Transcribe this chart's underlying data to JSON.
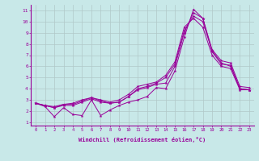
{
  "xlabel": "Windchill (Refroidissement éolien,°C)",
  "background_color": "#c8e8e8",
  "line_color": "#990099",
  "grid_color": "#b0c8c8",
  "xlim": [
    -0.5,
    23.5
  ],
  "ylim": [
    0.7,
    11.5
  ],
  "xticks": [
    0,
    1,
    2,
    3,
    4,
    5,
    6,
    7,
    8,
    9,
    10,
    11,
    12,
    13,
    14,
    15,
    16,
    17,
    18,
    19,
    20,
    21,
    22,
    23
  ],
  "yticks": [
    1,
    2,
    3,
    4,
    5,
    6,
    7,
    8,
    9,
    10,
    11
  ],
  "lines": [
    [
      2.7,
      2.4,
      1.5,
      2.3,
      1.7,
      1.6,
      3.0,
      1.6,
      2.1,
      2.5,
      2.8,
      3.0,
      3.3,
      4.1,
      4.0,
      5.6,
      8.6,
      11.1,
      10.3,
      7.3,
      6.2,
      6.1,
      4.0,
      3.9
    ],
    [
      2.7,
      2.5,
      2.3,
      2.5,
      2.5,
      2.8,
      3.1,
      2.8,
      2.7,
      2.8,
      3.3,
      3.9,
      4.1,
      4.4,
      4.5,
      6.0,
      9.0,
      10.8,
      10.3,
      7.5,
      6.5,
      6.3,
      4.2,
      4.1
    ],
    [
      2.7,
      2.5,
      2.3,
      2.6,
      2.6,
      2.9,
      3.2,
      2.9,
      2.7,
      2.8,
      3.3,
      4.0,
      4.2,
      4.5,
      5.0,
      6.2,
      9.2,
      10.5,
      10.0,
      7.4,
      6.3,
      6.0,
      4.0,
      3.9
    ],
    [
      2.7,
      2.5,
      2.4,
      2.6,
      2.7,
      3.0,
      3.2,
      3.0,
      2.8,
      3.0,
      3.5,
      4.2,
      4.4,
      4.6,
      5.2,
      6.4,
      9.5,
      10.3,
      9.5,
      7.0,
      6.0,
      5.8,
      3.9,
      3.9
    ]
  ]
}
